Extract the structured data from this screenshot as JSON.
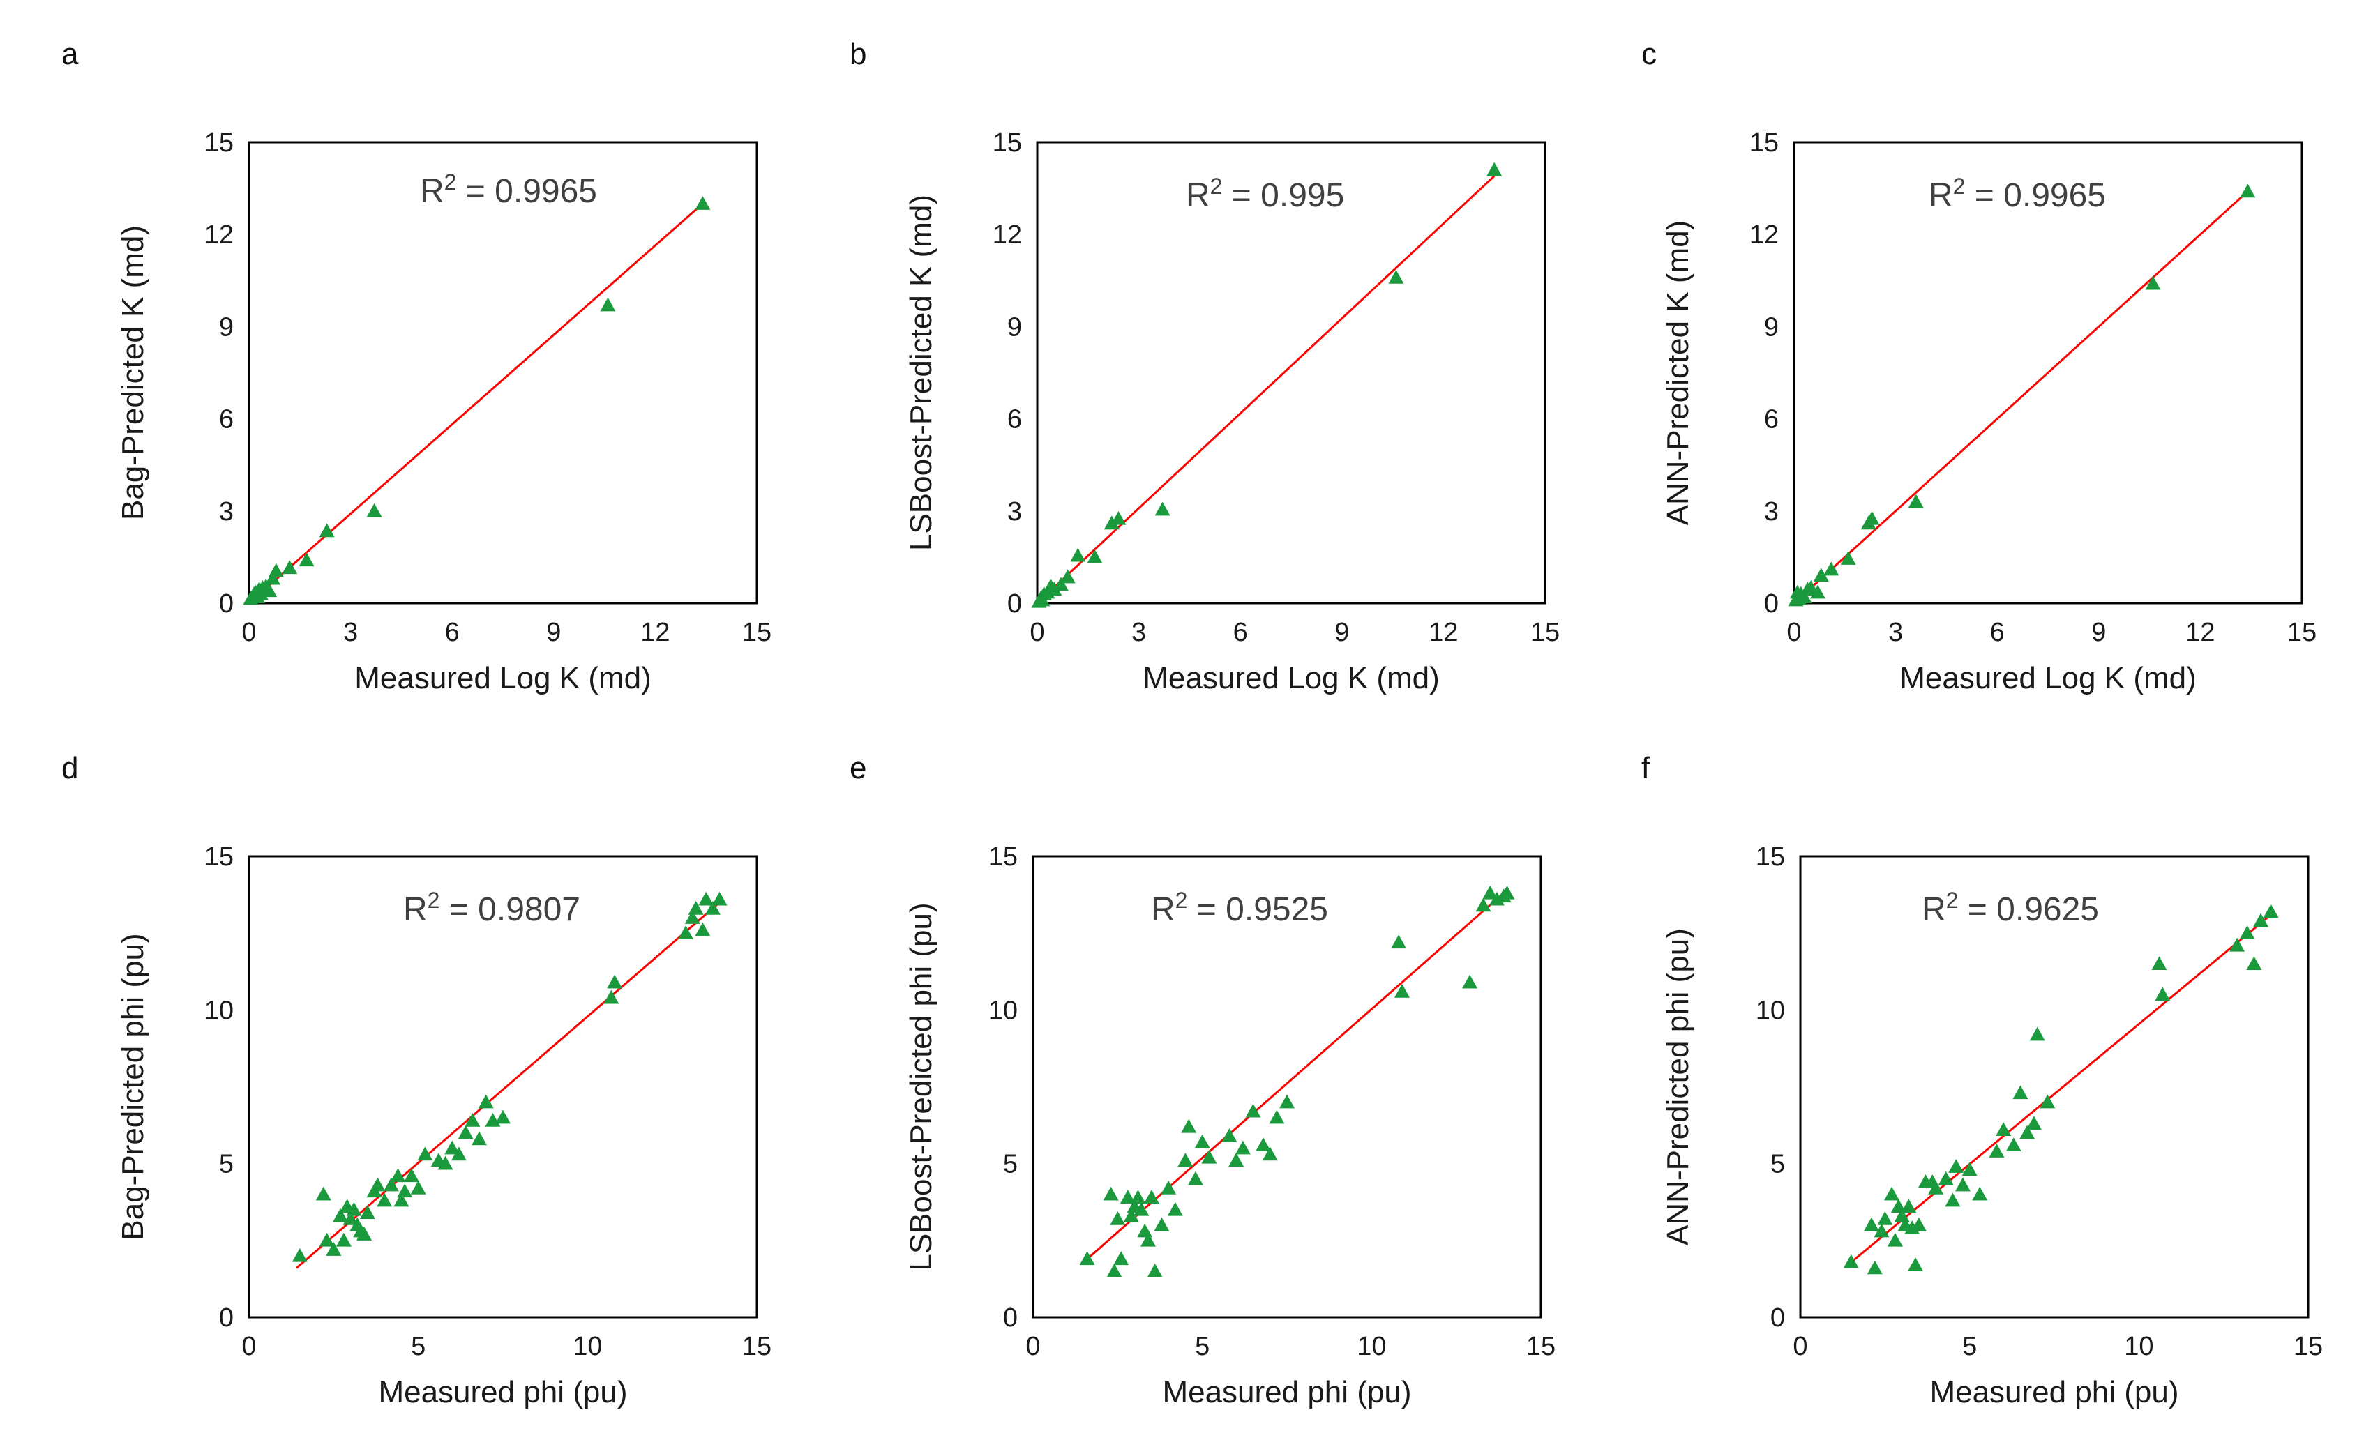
{
  "colors": {
    "point": "#1a9a3c",
    "fit_line": "#ff0000",
    "axis": "#000000",
    "text": "#1a1a1a"
  },
  "chart_data": [
    {
      "panel": "a",
      "type": "scatter",
      "xlabel": "Measured Log K (md)",
      "ylabel": "Bag-Predicted K (md)",
      "xlim": [
        0,
        15
      ],
      "ylim": [
        0,
        15
      ],
      "xticks": [
        "0",
        "3",
        "6",
        "9",
        "12",
        "15"
      ],
      "yticks": [
        "0",
        "3",
        "6",
        "9",
        "12",
        "15"
      ],
      "r2_prefix": "R",
      "r2_sup": "2",
      "r2_value": " = 0.9965",
      "fit_line": {
        "x": [
          0.0,
          13.4
        ],
        "y": [
          0.0,
          13.0
        ]
      },
      "x": [
        0.05,
        0.1,
        0.15,
        0.2,
        0.25,
        0.3,
        0.35,
        0.4,
        0.5,
        0.6,
        0.7,
        0.8,
        1.2,
        1.7,
        2.3,
        3.7,
        10.6,
        13.4
      ],
      "y": [
        0.15,
        0.2,
        0.3,
        0.35,
        0.2,
        0.45,
        0.3,
        0.5,
        0.55,
        0.4,
        0.8,
        1.05,
        1.15,
        1.4,
        2.35,
        3.0,
        9.7,
        13.0
      ]
    },
    {
      "panel": "b",
      "type": "scatter",
      "xlabel": "Measured Log K (md)",
      "ylabel": "LSBoost-Predicted K (md)",
      "xlim": [
        0,
        15
      ],
      "ylim": [
        0,
        15
      ],
      "xticks": [
        "0",
        "3",
        "6",
        "9",
        "12",
        "15"
      ],
      "yticks": [
        "0",
        "3",
        "6",
        "9",
        "12",
        "15"
      ],
      "r2_prefix": "R",
      "r2_sup": "2",
      "r2_value": " = 0.995",
      "fit_line": {
        "x": [
          0.0,
          13.5
        ],
        "y": [
          0.0,
          13.9
        ]
      },
      "x": [
        0.05,
        0.1,
        0.15,
        0.2,
        0.3,
        0.4,
        0.5,
        0.7,
        0.9,
        1.2,
        1.7,
        2.2,
        2.4,
        3.7,
        10.6,
        13.5
      ],
      "y": [
        0.05,
        0.15,
        0.1,
        0.3,
        0.35,
        0.55,
        0.45,
        0.6,
        0.85,
        1.55,
        1.5,
        2.6,
        2.75,
        3.05,
        10.6,
        14.1
      ]
    },
    {
      "panel": "c",
      "type": "scatter",
      "xlabel": "Measured Log K (md)",
      "ylabel": "ANN-Predicted K (md)",
      "xlim": [
        0,
        15
      ],
      "ylim": [
        0,
        15
      ],
      "xticks": [
        "0",
        "3",
        "6",
        "9",
        "12",
        "15"
      ],
      "yticks": [
        "0",
        "3",
        "6",
        "9",
        "12",
        "15"
      ],
      "r2_prefix": "R",
      "r2_sup": "2",
      "r2_value": " = 0.9965",
      "fit_line": {
        "x": [
          0.0,
          13.4
        ],
        "y": [
          0.0,
          13.4
        ]
      },
      "x": [
        0.05,
        0.1,
        0.15,
        0.2,
        0.3,
        0.4,
        0.5,
        0.7,
        0.8,
        1.1,
        1.6,
        2.2,
        2.3,
        3.6,
        10.6,
        13.4
      ],
      "y": [
        0.1,
        0.35,
        0.15,
        0.3,
        0.2,
        0.45,
        0.5,
        0.35,
        0.9,
        1.1,
        1.45,
        2.6,
        2.75,
        3.3,
        10.4,
        13.4
      ]
    },
    {
      "panel": "d",
      "type": "scatter",
      "xlabel": "Measured phi (pu)",
      "ylabel": "Bag-Predicted phi (pu)",
      "xlim": [
        0,
        15
      ],
      "ylim": [
        0,
        15
      ],
      "xticks": [
        "0",
        "5",
        "10",
        "15"
      ],
      "yticks": [
        "0",
        "5",
        "10",
        "15"
      ],
      "r2_prefix": "R",
      "r2_sup": "2",
      "r2_value": " = 0.9807",
      "fit_line": {
        "x": [
          1.4,
          13.9
        ],
        "y": [
          1.6,
          13.5
        ]
      },
      "x": [
        1.5,
        2.2,
        2.3,
        2.5,
        2.7,
        2.8,
        2.9,
        3.0,
        3.1,
        3.2,
        3.3,
        3.4,
        3.5,
        3.7,
        3.8,
        4.0,
        4.2,
        4.4,
        4.5,
        4.6,
        4.8,
        5.0,
        5.2,
        5.6,
        5.8,
        6.0,
        6.2,
        6.4,
        6.6,
        6.8,
        7.0,
        7.2,
        7.5,
        10.7,
        10.8,
        12.9,
        13.1,
        13.2,
        13.4,
        13.5,
        13.7,
        13.9
      ],
      "y": [
        2.0,
        4.0,
        2.5,
        2.2,
        3.3,
        2.5,
        3.6,
        3.2,
        3.5,
        3.0,
        2.8,
        2.7,
        3.4,
        4.1,
        4.3,
        3.8,
        4.3,
        4.6,
        3.8,
        4.1,
        4.6,
        4.2,
        5.3,
        5.1,
        5.0,
        5.5,
        5.3,
        6.0,
        6.4,
        5.8,
        7.0,
        6.4,
        6.5,
        10.4,
        10.9,
        12.5,
        13.0,
        13.3,
        12.6,
        13.6,
        13.3,
        13.6
      ]
    },
    {
      "panel": "e",
      "type": "scatter",
      "xlabel": "Measured phi (pu)",
      "ylabel": "LSBoost-Predicted phi (pu)",
      "xlim": [
        0,
        15
      ],
      "ylim": [
        0,
        15
      ],
      "xticks": [
        "0",
        "5",
        "10",
        "15"
      ],
      "yticks": [
        "0",
        "5",
        "10",
        "15"
      ],
      "r2_prefix": "R",
      "r2_sup": "2",
      "r2_value": " = 0.9525",
      "fit_line": {
        "x": [
          1.5,
          14.0
        ],
        "y": [
          1.8,
          13.9
        ]
      },
      "x": [
        1.6,
        2.3,
        2.4,
        2.5,
        2.6,
        2.8,
        2.9,
        3.0,
        3.1,
        3.2,
        3.3,
        3.4,
        3.5,
        3.6,
        3.8,
        4.0,
        4.2,
        4.5,
        4.6,
        4.8,
        5.0,
        5.2,
        5.8,
        6.0,
        6.2,
        6.5,
        6.8,
        7.0,
        7.2,
        7.5,
        10.8,
        10.9,
        12.9,
        13.3,
        13.5,
        13.7,
        13.9,
        14.0
      ],
      "y": [
        1.9,
        4.0,
        1.5,
        3.2,
        1.9,
        3.9,
        3.3,
        3.6,
        3.9,
        3.5,
        2.8,
        2.5,
        3.9,
        1.5,
        3.0,
        4.2,
        3.5,
        5.1,
        6.2,
        4.5,
        5.7,
        5.2,
        5.9,
        5.1,
        5.5,
        6.7,
        5.6,
        5.3,
        6.5,
        7.0,
        12.2,
        10.6,
        10.9,
        13.4,
        13.8,
        13.6,
        13.7,
        13.8
      ]
    },
    {
      "panel": "f",
      "type": "scatter",
      "xlabel": "Measured phi (pu)",
      "ylabel": "ANN-Predicted phi (pu)",
      "xlim": [
        0,
        15
      ],
      "ylim": [
        0,
        15
      ],
      "xticks": [
        "0",
        "5",
        "10",
        "15"
      ],
      "yticks": [
        "0",
        "5",
        "10",
        "15"
      ],
      "r2_prefix": "R",
      "r2_sup": "2",
      "r2_value": " = 0.9625",
      "fit_line": {
        "x": [
          1.4,
          13.9
        ],
        "y": [
          1.7,
          13.1
        ]
      },
      "x": [
        1.5,
        2.1,
        2.2,
        2.4,
        2.5,
        2.7,
        2.8,
        2.9,
        3.0,
        3.1,
        3.2,
        3.3,
        3.4,
        3.5,
        3.7,
        3.9,
        4.0,
        4.3,
        4.5,
        4.6,
        4.8,
        5.0,
        5.3,
        5.8,
        6.0,
        6.3,
        6.5,
        6.7,
        6.9,
        7.0,
        7.3,
        10.6,
        10.7,
        12.9,
        13.2,
        13.4,
        13.6,
        13.9
      ],
      "y": [
        1.8,
        3.0,
        1.6,
        2.8,
        3.2,
        4.0,
        2.5,
        3.6,
        3.3,
        3.0,
        3.6,
        2.9,
        1.7,
        3.0,
        4.4,
        4.4,
        4.2,
        4.5,
        3.8,
        4.9,
        4.3,
        4.8,
        4.0,
        5.4,
        6.1,
        5.6,
        7.3,
        6.0,
        6.3,
        9.2,
        7.0,
        11.5,
        10.5,
        12.1,
        12.5,
        11.5,
        12.9,
        13.2
      ]
    }
  ]
}
